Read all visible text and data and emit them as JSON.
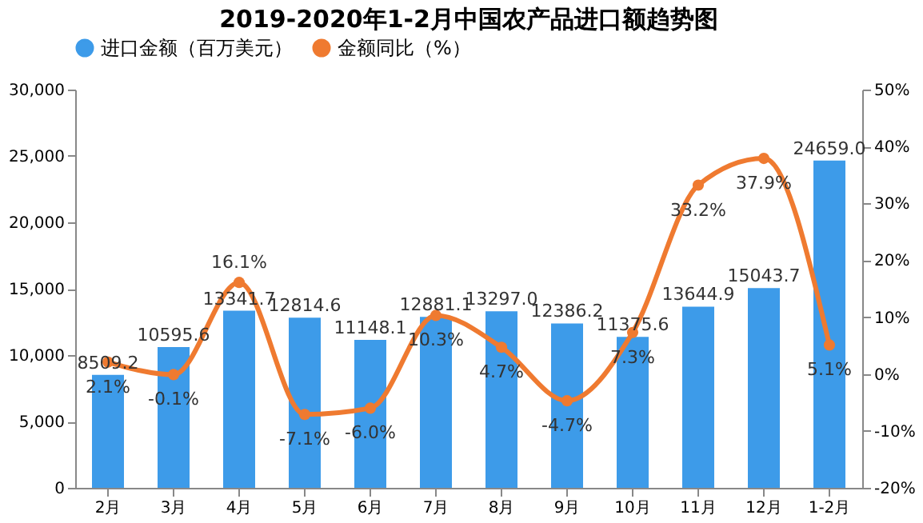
{
  "chart_data": {
    "type": "bar",
    "title": "2019-2020年1-2月中国农产品进口额趋势图",
    "categories": [
      "2月",
      "3月",
      "4月",
      "5月",
      "6月",
      "7月",
      "8月",
      "9月",
      "10月",
      "11月",
      "12月",
      "1-2月"
    ],
    "series": [
      {
        "name": "进口金额（百万美元）",
        "type": "bar",
        "color": "#3d9be9",
        "values": [
          8509.2,
          10595.6,
          13341.7,
          12814.6,
          11148.1,
          12881.1,
          13297.0,
          12386.2,
          11375.6,
          13644.9,
          15043.7,
          24659.0
        ],
        "value_labels": [
          "8509.2",
          "10595.6",
          "13341.7",
          "12814.6",
          "11148.1",
          "12881.1",
          "13297.0",
          "12386.2",
          "11375.6",
          "13644.9",
          "15043.7",
          "24659.0"
        ]
      },
      {
        "name": "金额同比（%）",
        "type": "line",
        "axis": "y2",
        "color": "#ef7a30",
        "marker": "circle",
        "line_style": "solid",
        "values": [
          2.1,
          -0.1,
          16.1,
          -7.1,
          -6.0,
          10.3,
          4.7,
          -4.7,
          7.3,
          33.2,
          37.9,
          5.1
        ],
        "value_labels": [
          "2.1%",
          "-0.1%",
          "16.1%",
          "-7.1%",
          "-6.0%",
          "10.3%",
          "4.7%",
          "-4.7%",
          "7.3%",
          "33.2%",
          "37.9%",
          "5.1%"
        ]
      }
    ],
    "ylim": [
      0,
      30000
    ],
    "yticks": [
      0,
      {
        "value": 5000,
        "label": "5,000"
      },
      {
        "value": 10000,
        "label": "10,000"
      },
      {
        "value": 15000,
        "label": "15,000"
      },
      {
        "value": 20000,
        "label": "20,000"
      },
      {
        "value": 25000,
        "label": "25,000"
      },
      {
        "value": 30000,
        "label": "30,000"
      }
    ],
    "y2lim": [
      -20,
      50
    ],
    "y2ticks": [
      {
        "value": -20,
        "label": "-20%"
      },
      {
        "value": -10,
        "label": "-10%"
      },
      {
        "value": 0,
        "label": "0%"
      },
      {
        "value": 10,
        "label": "10%"
      },
      {
        "value": 20,
        "label": "20%"
      },
      {
        "value": 30,
        "label": "30%"
      },
      {
        "value": 40,
        "label": "40%"
      },
      {
        "value": 50,
        "label": "50%"
      }
    ],
    "grid": false,
    "legend": "top"
  }
}
